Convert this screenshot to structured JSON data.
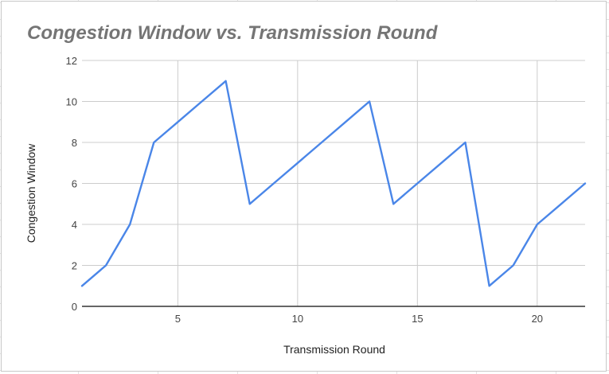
{
  "chart_data": {
    "type": "line",
    "title": "Congestion Window vs. Transmission Round",
    "xlabel": "Transmission Round",
    "ylabel": "Congestion Window",
    "xlim": [
      1,
      22
    ],
    "ylim": [
      0,
      12
    ],
    "x_ticks": [
      5,
      10,
      15,
      20
    ],
    "y_ticks": [
      0,
      2,
      4,
      6,
      8,
      10,
      12
    ],
    "grid": true,
    "legend": "none",
    "series": [
      {
        "color": "#4a86e8",
        "x": [
          1,
          2,
          3,
          4,
          5,
          6,
          7,
          8,
          9,
          10,
          11,
          12,
          13,
          14,
          15,
          16,
          17,
          18,
          19,
          20,
          21,
          22
        ],
        "values": [
          1,
          2,
          4,
          8,
          9,
          10,
          11,
          5,
          6,
          7,
          8,
          9,
          10,
          5,
          6,
          7,
          8,
          1,
          2,
          4,
          5,
          6
        ]
      }
    ]
  }
}
